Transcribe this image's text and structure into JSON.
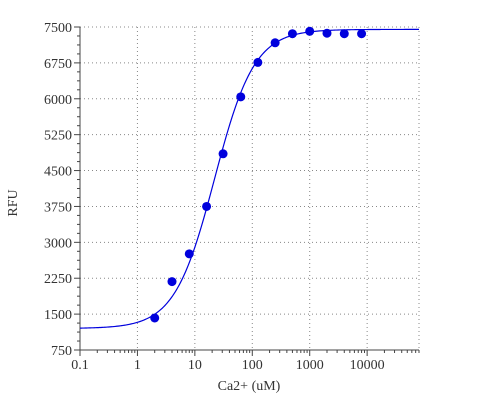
{
  "chart_data": {
    "type": "scatter",
    "title": "",
    "xlabel": "Ca2+ (uM)",
    "ylabel": "RFU",
    "x_scale": "log",
    "xlim": [
      0.1,
      80000
    ],
    "ylim": [
      750,
      7500
    ],
    "x_ticks": [
      0.1,
      1,
      10,
      100,
      1000,
      10000
    ],
    "x_tick_labels": [
      "0.1",
      "1",
      "10",
      "100",
      "1000",
      "10000"
    ],
    "y_ticks": [
      750,
      1500,
      2250,
      3000,
      3750,
      4500,
      5250,
      6000,
      6750,
      7500
    ],
    "y_tick_labels": [
      "750",
      "1500",
      "2250",
      "3000",
      "3750",
      "4500",
      "5250",
      "6000",
      "6750",
      "7500"
    ],
    "grid": true,
    "legend": "none",
    "series": [
      {
        "kind": "points",
        "color": "#0000dd",
        "points": [
          {
            "x": 2,
            "y": 1420
          },
          {
            "x": 4,
            "y": 2180
          },
          {
            "x": 8,
            "y": 2760
          },
          {
            "x": 16,
            "y": 3750
          },
          {
            "x": 31,
            "y": 4850
          },
          {
            "x": 63,
            "y": 6040
          },
          {
            "x": 125,
            "y": 6760
          },
          {
            "x": 250,
            "y": 7170
          },
          {
            "x": 500,
            "y": 7360
          },
          {
            "x": 1000,
            "y": 7410
          },
          {
            "x": 2000,
            "y": 7370
          },
          {
            "x": 4000,
            "y": 7360
          },
          {
            "x": 8000,
            "y": 7360
          }
        ]
      },
      {
        "kind": "fit",
        "color": "#0000dd",
        "model": "four-parameter logistic",
        "bottom": 1200,
        "top": 7450,
        "ec50": 22,
        "hill": 1.25
      }
    ]
  }
}
